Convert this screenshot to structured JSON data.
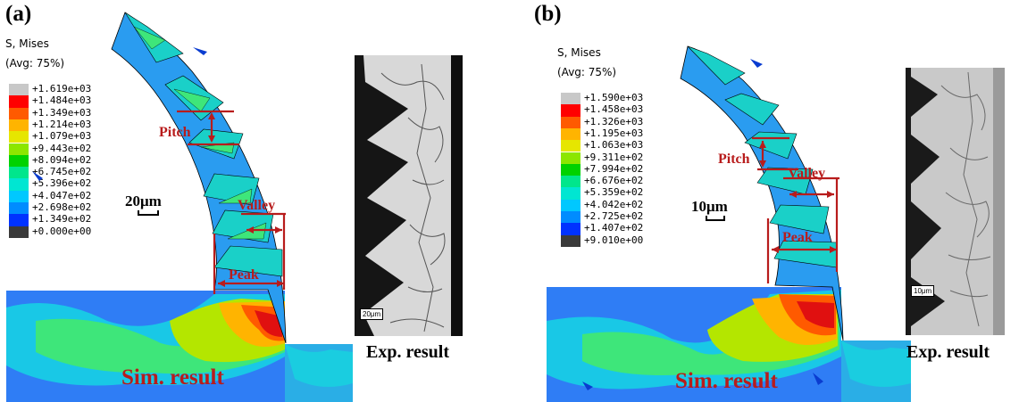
{
  "panels": [
    {
      "label": "(a)",
      "legend_title_line1": "S, Mises",
      "legend_title_line2": "(Avg: 75%)",
      "legend_values": [
        "+1.619e+03",
        "+1.484e+03",
        "+1.349e+03",
        "+1.214e+03",
        "+1.079e+03",
        "+9.443e+02",
        "+8.094e+02",
        "+6.745e+02",
        "+5.396e+02",
        "+4.047e+02",
        "+2.698e+02",
        "+1.349e+02",
        "+0.000e+00"
      ],
      "scale_label": "20μm",
      "micro_scale_label": "20μm",
      "pitch_label": "Pitch",
      "valley_label": "Valley",
      "peak_label": "Peak",
      "sim_label": "Sim. result",
      "exp_label": "Exp. result"
    },
    {
      "label": "(b)",
      "legend_title_line1": "S, Mises",
      "legend_title_line2": "(Avg: 75%)",
      "legend_values": [
        "+1.590e+03",
        "+1.458e+03",
        "+1.326e+03",
        "+1.195e+03",
        "+1.063e+03",
        "+9.311e+02",
        "+7.994e+02",
        "+6.676e+02",
        "+5.359e+02",
        "+4.042e+02",
        "+2.725e+02",
        "+1.407e+02",
        "+9.010e+00"
      ],
      "scale_label": "10μm",
      "micro_scale_label": "10μm",
      "pitch_label": "Pitch",
      "valley_label": "Valley",
      "peak_label": "Peak",
      "sim_label": "Sim. result",
      "exp_label": "Exp. result"
    }
  ],
  "colors": {
    "legend_bands": [
      "#c8c8c8",
      "#ff0000",
      "#ff5a00",
      "#ffb400",
      "#e6e600",
      "#8ce600",
      "#00d200",
      "#00e68c",
      "#00e6d2",
      "#00c8ff",
      "#008cff",
      "#0032ff",
      "#3a3a3a"
    ],
    "annotation": "#b81c1c"
  }
}
